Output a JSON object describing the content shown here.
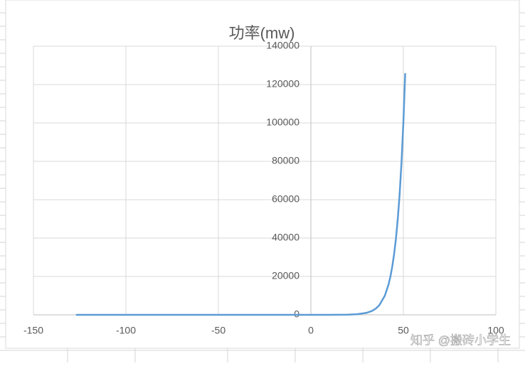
{
  "chart_data": {
    "type": "line",
    "title": "功率(mw)",
    "x": [
      -127,
      -100,
      -50,
      0,
      10,
      20,
      25,
      30,
      33,
      35,
      37,
      40,
      42,
      43,
      44,
      45,
      46,
      47,
      48,
      49,
      50,
      51
    ],
    "series": [
      {
        "color": "#5b9bd5",
        "values": [
          0,
          0,
          0,
          1,
          10,
          100,
          316,
          1000,
          1995,
          3162,
          5012,
          10000,
          15849,
          19953,
          25119,
          31623,
          39811,
          50119,
          63096,
          79433,
          100000,
          125893
        ]
      }
    ],
    "xlim": [
      -150,
      100
    ],
    "xticks": [
      -150,
      -100,
      -50,
      0,
      50,
      100
    ],
    "ylim": [
      0,
      140000
    ],
    "yticks": [
      0,
      20000,
      40000,
      60000,
      80000,
      100000,
      120000,
      140000
    ],
    "grid": true
  },
  "watermark": "知乎 @搬砖小学生"
}
